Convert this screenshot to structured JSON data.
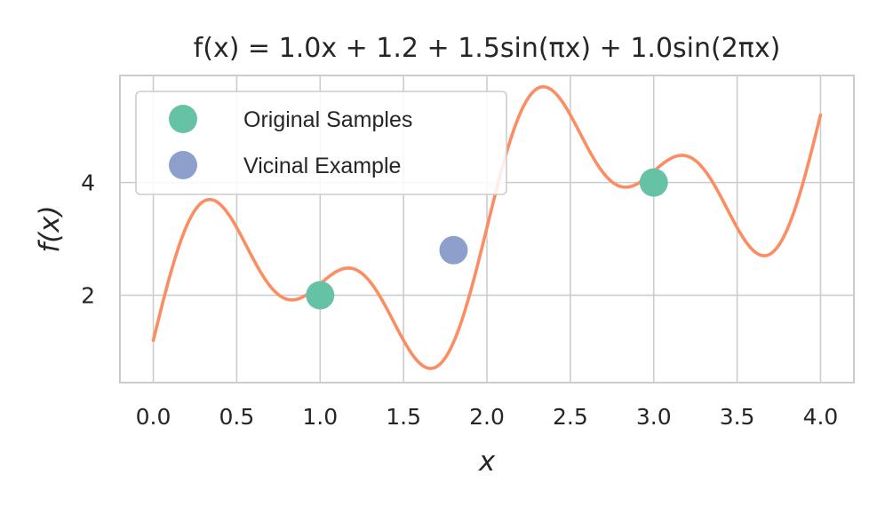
{
  "chart_data": {
    "type": "line",
    "title": "f(x) = 1.0x + 1.2 + 1.5sin(πx) + 1.0sin(2πx)",
    "xlabel": "x",
    "ylabel": "f(x)",
    "xlim": [
      -0.2,
      4.2
    ],
    "ylim": [
      0.45,
      5.9
    ],
    "xticks": [
      0.0,
      0.5,
      1.0,
      1.5,
      2.0,
      2.5,
      3.0,
      3.5,
      4.0
    ],
    "xtick_labels": [
      "0.0",
      "0.5",
      "1.0",
      "1.5",
      "2.0",
      "2.5",
      "3.0",
      "3.5",
      "4.0"
    ],
    "yticks": [
      2,
      4
    ],
    "ytick_labels": [
      "2",
      "4"
    ],
    "grid": true,
    "legend_position": "top-left",
    "curve": {
      "function": "1.0x + 1.2 + 1.5sin(πx) + 1.0sin(2πx)",
      "x_range": [
        0.0,
        4.0
      ],
      "color": "#fc8d62"
    },
    "series": [
      {
        "name": "Original Samples",
        "color": "#66c2a5",
        "points": [
          [
            1.0,
            2.0
          ],
          [
            3.0,
            4.0
          ]
        ]
      },
      {
        "name": "Vicinal Example",
        "color": "#8da0cb",
        "points": [
          [
            1.8,
            2.8
          ]
        ]
      }
    ]
  }
}
